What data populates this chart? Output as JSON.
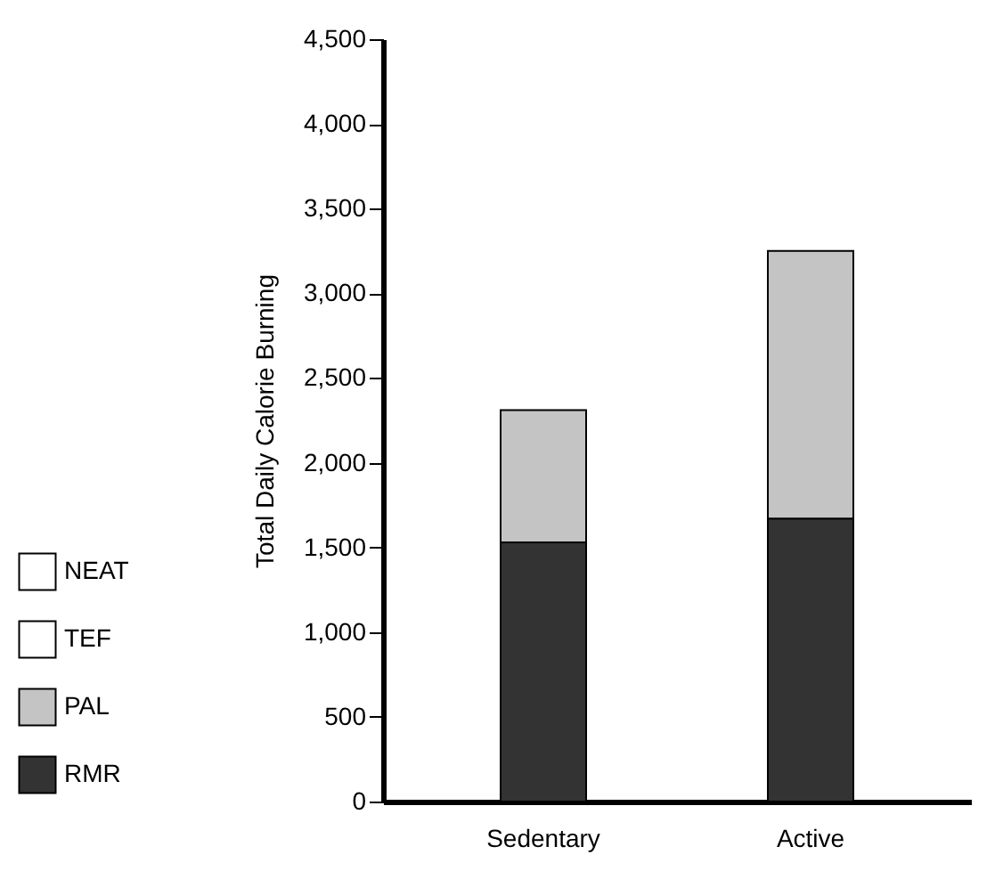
{
  "chart_data": {
    "type": "bar",
    "stacked": true,
    "ylabel": "Total Daily Calorie Burning",
    "categories": [
      "Sedentary",
      "Active"
    ],
    "series": [
      {
        "name": "RMR",
        "color": "#333333",
        "values": [
          1530,
          1670
        ]
      },
      {
        "name": "PAL",
        "color": "#c4c4c4",
        "values": [
          780,
          1580
        ]
      },
      {
        "name": "TEF",
        "color": "#ffffff",
        "values": [
          null,
          null
        ]
      },
      {
        "name": "NEAT",
        "color": "#ffffff",
        "values": [
          null,
          null
        ]
      }
    ],
    "ylim": [
      0,
      4500
    ],
    "yticks": [
      0,
      500,
      {
        "value": 1000,
        "label": "1,000"
      },
      {
        "value": 1500,
        "label": "1,500"
      },
      {
        "value": 2000,
        "label": "2,000"
      },
      {
        "value": 2500,
        "label": "2,500"
      },
      {
        "value": 3000,
        "label": "3,000"
      },
      {
        "value": 3500,
        "label": "3,500"
      },
      {
        "value": 4000,
        "label": "4,000"
      },
      {
        "value": 4500,
        "label": "4,500"
      }
    ],
    "grid": false,
    "legend": "bottom left"
  }
}
